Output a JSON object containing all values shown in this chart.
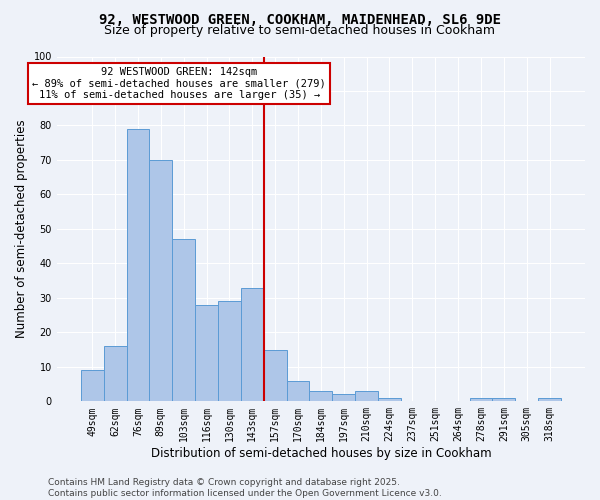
{
  "title1": "92, WESTWOOD GREEN, COOKHAM, MAIDENHEAD, SL6 9DE",
  "title2": "Size of property relative to semi-detached houses in Cookham",
  "xlabel": "Distribution of semi-detached houses by size in Cookham",
  "ylabel": "Number of semi-detached properties",
  "categories": [
    "49sqm",
    "62sqm",
    "76sqm",
    "89sqm",
    "103sqm",
    "116sqm",
    "130sqm",
    "143sqm",
    "157sqm",
    "170sqm",
    "184sqm",
    "197sqm",
    "210sqm",
    "224sqm",
    "237sqm",
    "251sqm",
    "264sqm",
    "278sqm",
    "291sqm",
    "305sqm",
    "318sqm"
  ],
  "values": [
    9,
    16,
    79,
    70,
    47,
    28,
    29,
    33,
    15,
    6,
    3,
    2,
    3,
    1,
    0,
    0,
    0,
    1,
    1,
    0,
    1
  ],
  "bar_color": "#aec6e8",
  "bar_edge_color": "#5b9bd5",
  "vline_index": 7,
  "annotation_title": "92 WESTWOOD GREEN: 142sqm",
  "annotation_smaller": "← 89% of semi-detached houses are smaller (279)",
  "annotation_larger": "11% of semi-detached houses are larger (35) →",
  "vline_color": "#cc0000",
  "annotation_box_color": "#cc0000",
  "background_color": "#eef2f9",
  "grid_color": "#ffffff",
  "ylim": [
    0,
    100
  ],
  "yticks": [
    0,
    10,
    20,
    30,
    40,
    50,
    60,
    70,
    80,
    90,
    100
  ],
  "footer1": "Contains HM Land Registry data © Crown copyright and database right 2025.",
  "footer2": "Contains public sector information licensed under the Open Government Licence v3.0.",
  "title1_fontsize": 10,
  "title2_fontsize": 9,
  "axis_label_fontsize": 8.5,
  "tick_fontsize": 7,
  "annotation_fontsize": 7.5,
  "footer_fontsize": 6.5
}
